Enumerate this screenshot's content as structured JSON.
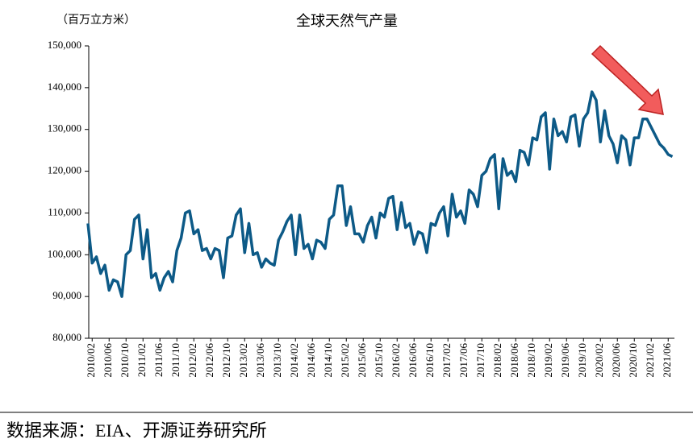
{
  "chart_data": {
    "type": "line",
    "title": "全球天然气产量",
    "y_label": "（百万立方米）",
    "source": "数据来源：EIA、开源证券研究所",
    "color": "#0d5a87",
    "ylim": [
      80000,
      150000
    ],
    "yticks": [
      {
        "value": 80000,
        "label": "80,000"
      },
      {
        "value": 90000,
        "label": "90,000"
      },
      {
        "value": 100000,
        "label": "100,000"
      },
      {
        "value": 110000,
        "label": "110,000"
      },
      {
        "value": 120000,
        "label": "120,000"
      },
      {
        "value": 130000,
        "label": "130,000"
      },
      {
        "value": 140000,
        "label": "140,000"
      },
      {
        "value": 150000,
        "label": "150,000"
      }
    ],
    "categories": [
      null,
      "2010/02",
      null,
      null,
      null,
      "2010/06",
      null,
      null,
      null,
      "2010/10",
      null,
      null,
      null,
      "2011/02",
      null,
      null,
      null,
      "2011/06",
      null,
      null,
      null,
      "2011/10",
      null,
      null,
      null,
      "2012/02",
      null,
      null,
      null,
      "2012/06",
      null,
      null,
      null,
      "2012/10",
      null,
      null,
      null,
      "2013/02",
      null,
      null,
      null,
      "2013/06",
      null,
      null,
      null,
      "2013/10",
      null,
      null,
      null,
      "2014/02",
      null,
      null,
      null,
      "2014/06",
      null,
      null,
      null,
      "2014/10",
      null,
      null,
      null,
      "2015/02",
      null,
      null,
      null,
      "2015/06",
      null,
      null,
      null,
      "2015/10",
      null,
      null,
      null,
      "2016/02",
      null,
      null,
      null,
      "2016/06",
      null,
      null,
      null,
      "2016/10",
      null,
      null,
      null,
      "2017/02",
      null,
      null,
      null,
      "2017/06",
      null,
      null,
      null,
      "2017/10",
      null,
      null,
      null,
      "2018/02",
      null,
      null,
      null,
      "2018/06",
      null,
      null,
      null,
      "2018/10",
      null,
      null,
      null,
      "2019/02",
      null,
      null,
      null,
      "2019/06",
      null,
      null,
      null,
      "2019/10",
      null,
      null,
      null,
      "2020/02",
      null,
      null,
      null,
      "2020/06",
      null,
      null,
      null,
      "2020/10",
      null,
      null,
      null,
      "2021/02",
      null,
      null,
      null,
      "2021/06",
      null
    ],
    "values": [
      107500,
      98000,
      99500,
      95500,
      97500,
      91500,
      94000,
      93500,
      90000,
      100000,
      101000,
      108500,
      109500,
      99000,
      106000,
      94500,
      95500,
      91500,
      94500,
      96000,
      93500,
      101000,
      104000,
      110000,
      110500,
      105000,
      106000,
      101000,
      101500,
      99000,
      101500,
      101000,
      94500,
      104000,
      104500,
      109500,
      111000,
      100500,
      107500,
      100000,
      100500,
      97000,
      99000,
      98000,
      97500,
      103500,
      105500,
      108000,
      109500,
      100000,
      109500,
      101500,
      102500,
      99000,
      103500,
      103000,
      101500,
      108500,
      109500,
      116500,
      116500,
      107000,
      111500,
      105000,
      105000,
      103000,
      107000,
      109000,
      104000,
      110000,
      109000,
      113500,
      114000,
      106000,
      112500,
      106500,
      107500,
      102500,
      105500,
      105000,
      100500,
      107500,
      107000,
      110000,
      111500,
      104500,
      114500,
      109000,
      110500,
      107500,
      115500,
      114500,
      111500,
      119000,
      120000,
      123000,
      124000,
      111000,
      123000,
      119000,
      120000,
      117500,
      125000,
      124500,
      121500,
      128000,
      127500,
      133000,
      134000,
      120500,
      132500,
      128500,
      129500,
      127000,
      133000,
      133500,
      126000,
      132500,
      134000,
      139000,
      137000,
      127000,
      134500,
      128500,
      126500,
      122000,
      128500,
      127500,
      121500,
      128000,
      128000,
      132500,
      132500,
      130500,
      128500,
      126500,
      125500,
      124000,
      123500
    ]
  }
}
